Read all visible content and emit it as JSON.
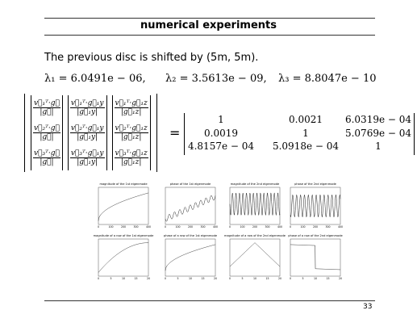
{
  "header": {
    "title": "numerical experiments"
  },
  "body": {
    "intro": "The previous disc is shifted by (5m, 5m).",
    "eigenvalues": [
      "λ₁ = 6.0491e − 06,",
      "λ₂ = 3.5613e − 09,",
      "λ₃ = 8.8047e − 10"
    ],
    "matrix_left": [
      [
        {
          "num": "v⃗₁ᵀ·g⃗",
          "den": "|g⃗|"
        },
        {
          "num": "v⃗₁ᵀ·g⃗₁y",
          "den": "|g⃗₁y|"
        },
        {
          "num": "v⃗₁ᵀ·g⃗₁z",
          "den": "|g⃗₁z|"
        }
      ],
      [
        {
          "num": "v⃗₂ᵀ·g⃗",
          "den": "|g⃗|"
        },
        {
          "num": "v⃗₂ᵀ·g⃗₁y",
          "den": "|g⃗₁y|"
        },
        {
          "num": "v⃗₂ᵀ·g⃗₁z",
          "den": "|g⃗₁z|"
        }
      ],
      [
        {
          "num": "v⃗₃ᵀ·g⃗",
          "den": "|g⃗|"
        },
        {
          "num": "v⃗₃ᵀ·g⃗₁y",
          "den": "|g⃗₁y|"
        },
        {
          "num": "v⃗₃ᵀ·g⃗₁z",
          "den": "|g⃗₁z|"
        }
      ]
    ],
    "equals": "=",
    "matrix_right": [
      [
        "1",
        "0.0021",
        "6.0319e − 04"
      ],
      [
        "0.0019",
        "1",
        "5.0769e − 04"
      ],
      [
        "4.8157e − 04",
        "5.0918e − 04",
        "1"
      ]
    ]
  },
  "figures": [
    {
      "title": "magnitude of the 1st eigenmode",
      "xticks": [
        "0",
        "100",
        "200",
        "300",
        "400"
      ]
    },
    {
      "title": "phase of the 1st eigenmode",
      "xticks": [
        "0",
        "100",
        "200",
        "300",
        "400"
      ]
    },
    {
      "title": "magnitude of the 2nd eigenmode",
      "xticks": [
        "0",
        "100",
        "200",
        "300",
        "400"
      ]
    },
    {
      "title": "phase of the 2nd eigenmode",
      "xticks": [
        "0",
        "100",
        "200",
        "300",
        "400"
      ]
    },
    {
      "title": "magnitude of a row of the 1st eigenmode",
      "xticks": [
        "0",
        "5",
        "10",
        "15",
        "20"
      ]
    },
    {
      "title": "phase of a row of the 1st eigenmode",
      "xticks": [
        "0",
        "5",
        "10",
        "15",
        "20"
      ]
    },
    {
      "title": "magnitude of a row of the 2nd eigenmode",
      "xticks": [
        "0",
        "5",
        "10",
        "15",
        "20"
      ]
    },
    {
      "title": "phase of a row of the 2nd eigenmode",
      "xticks": [
        "0",
        "5",
        "10",
        "15",
        "20"
      ]
    }
  ],
  "footer": {
    "page": "33"
  }
}
